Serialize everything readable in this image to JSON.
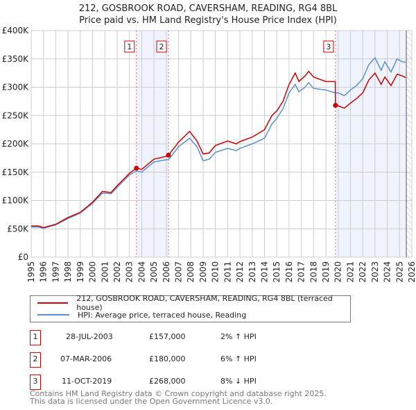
{
  "chart_data": {
    "type": "line",
    "title": "212, GOSBROOK ROAD, CAVERSHAM, READING, RG4 8BL",
    "subtitle": "Price paid vs. HM Land Registry's House Price Index (HPI)",
    "xlim": [
      1995,
      2026
    ],
    "ylim": [
      0,
      400000
    ],
    "y_ticks": [
      0,
      50000,
      100000,
      150000,
      200000,
      250000,
      300000,
      350000,
      400000
    ],
    "y_tick_labels": [
      "£0",
      "£50K",
      "£100K",
      "£150K",
      "£200K",
      "£250K",
      "£300K",
      "£350K",
      "£400K"
    ],
    "x_tick_labels": [
      "1995",
      "1996",
      "1997",
      "1998",
      "1999",
      "2000",
      "2001",
      "2002",
      "2003",
      "2004",
      "2005",
      "2006",
      "2007",
      "2008",
      "2009",
      "2010",
      "2011",
      "2012",
      "2013",
      "2014",
      "2015",
      "2016",
      "2017",
      "2018",
      "2019",
      "2020",
      "2021",
      "2022",
      "2023",
      "2024",
      "2025",
      "2026"
    ],
    "grid": true,
    "series": [
      {
        "name": "212, GOSBROOK ROAD, CAVERSHAM, READING, RG4 8BL (terraced house)",
        "color": "#cc0000",
        "x": [
          1995,
          1995.6,
          1996,
          1997,
          1998,
          1999,
          2000,
          2000.8,
          2001.5,
          2002,
          2003,
          2003.57,
          2004,
          2005,
          2006,
          2006.18,
          2007,
          2007.9,
          2008.5,
          2009,
          2009.5,
          2010,
          2011,
          2011.7,
          2012,
          2013,
          2014,
          2014.6,
          2015,
          2015.5,
          2016,
          2016.5,
          2016.8,
          2017.3,
          2017.6,
          2018,
          2019,
          2019.76,
          2019.78,
          2020,
          2020.5,
          2021,
          2021.5,
          2022,
          2022.5,
          2023,
          2023.5,
          2023.8,
          2024.3,
          2024.8,
          2025.2,
          2025.5
        ],
        "values": [
          55,
          55,
          52,
          58,
          70,
          79,
          97,
          116,
          114,
          126,
          148,
          157,
          155,
          173,
          178,
          180,
          203,
          222,
          205,
          182,
          184,
          197,
          205,
          200,
          204,
          212,
          225,
          250,
          258,
          275,
          305,
          325,
          310,
          320,
          328,
          318,
          310,
          310,
          268,
          267,
          263,
          272,
          280,
          290,
          313,
          325,
          305,
          318,
          303,
          323,
          320,
          317
        ]
      },
      {
        "name": "HPI: Average price, terraced house, Reading",
        "color": "#5b8fd0",
        "x": [
          1995,
          1995.6,
          1996,
          1997,
          1998,
          1999,
          2000,
          2000.8,
          2001.5,
          2002,
          2003,
          2003.57,
          2004,
          2005,
          2006,
          2006.18,
          2007,
          2007.9,
          2008.5,
          2009,
          2009.5,
          2010,
          2011,
          2011.7,
          2012,
          2013,
          2014,
          2014.6,
          2015,
          2015.5,
          2016,
          2016.5,
          2016.8,
          2017.3,
          2017.6,
          2018,
          2019,
          2019.78,
          2020,
          2020.5,
          2021,
          2021.5,
          2022,
          2022.5,
          2023,
          2023.5,
          2023.8,
          2024.3,
          2024.8,
          2025.2,
          2025.5
        ],
        "values": [
          53,
          53,
          51,
          57,
          68,
          78,
          95,
          113,
          112,
          123,
          145,
          152,
          150,
          168,
          172,
          172,
          195,
          210,
          195,
          170,
          173,
          185,
          192,
          188,
          192,
          200,
          210,
          235,
          245,
          262,
          290,
          305,
          292,
          300,
          308,
          298,
          295,
          290,
          290,
          285,
          295,
          303,
          315,
          340,
          352,
          330,
          345,
          327,
          350,
          345,
          344
        ]
      }
    ],
    "value_units": "thousand GBP",
    "sales": [
      {
        "label": "1",
        "x": 2003.57,
        "value": 157
      },
      {
        "label": "2",
        "x": 2006.18,
        "value": 180
      },
      {
        "label": "3",
        "x": 2019.78,
        "value": 268
      }
    ],
    "shaded_ranges": [
      [
        2003.57,
        2006.18
      ],
      [
        2019.78,
        2025.55
      ]
    ],
    "forecast_hatch_from": 2025.55
  },
  "legend": {
    "items": [
      "212, GOSBROOK ROAD, CAVERSHAM, READING, RG4 8BL (terraced house)",
      "HPI: Average price, terraced house, Reading"
    ]
  },
  "table": [
    {
      "num": "1",
      "date": "28-JUL-2003",
      "price": "£157,000",
      "hpi": "2% ↑ HPI"
    },
    {
      "num": "2",
      "date": "07-MAR-2006",
      "price": "£180,000",
      "hpi": "6% ↑ HPI"
    },
    {
      "num": "3",
      "date": "11-OCT-2019",
      "price": "£268,000",
      "hpi": "8% ↓ HPI"
    }
  ],
  "footer": [
    "Contains HM Land Registry data © Crown copyright and database right 2025.",
    "This data is licensed under the Open Government Licence v3.0."
  ]
}
